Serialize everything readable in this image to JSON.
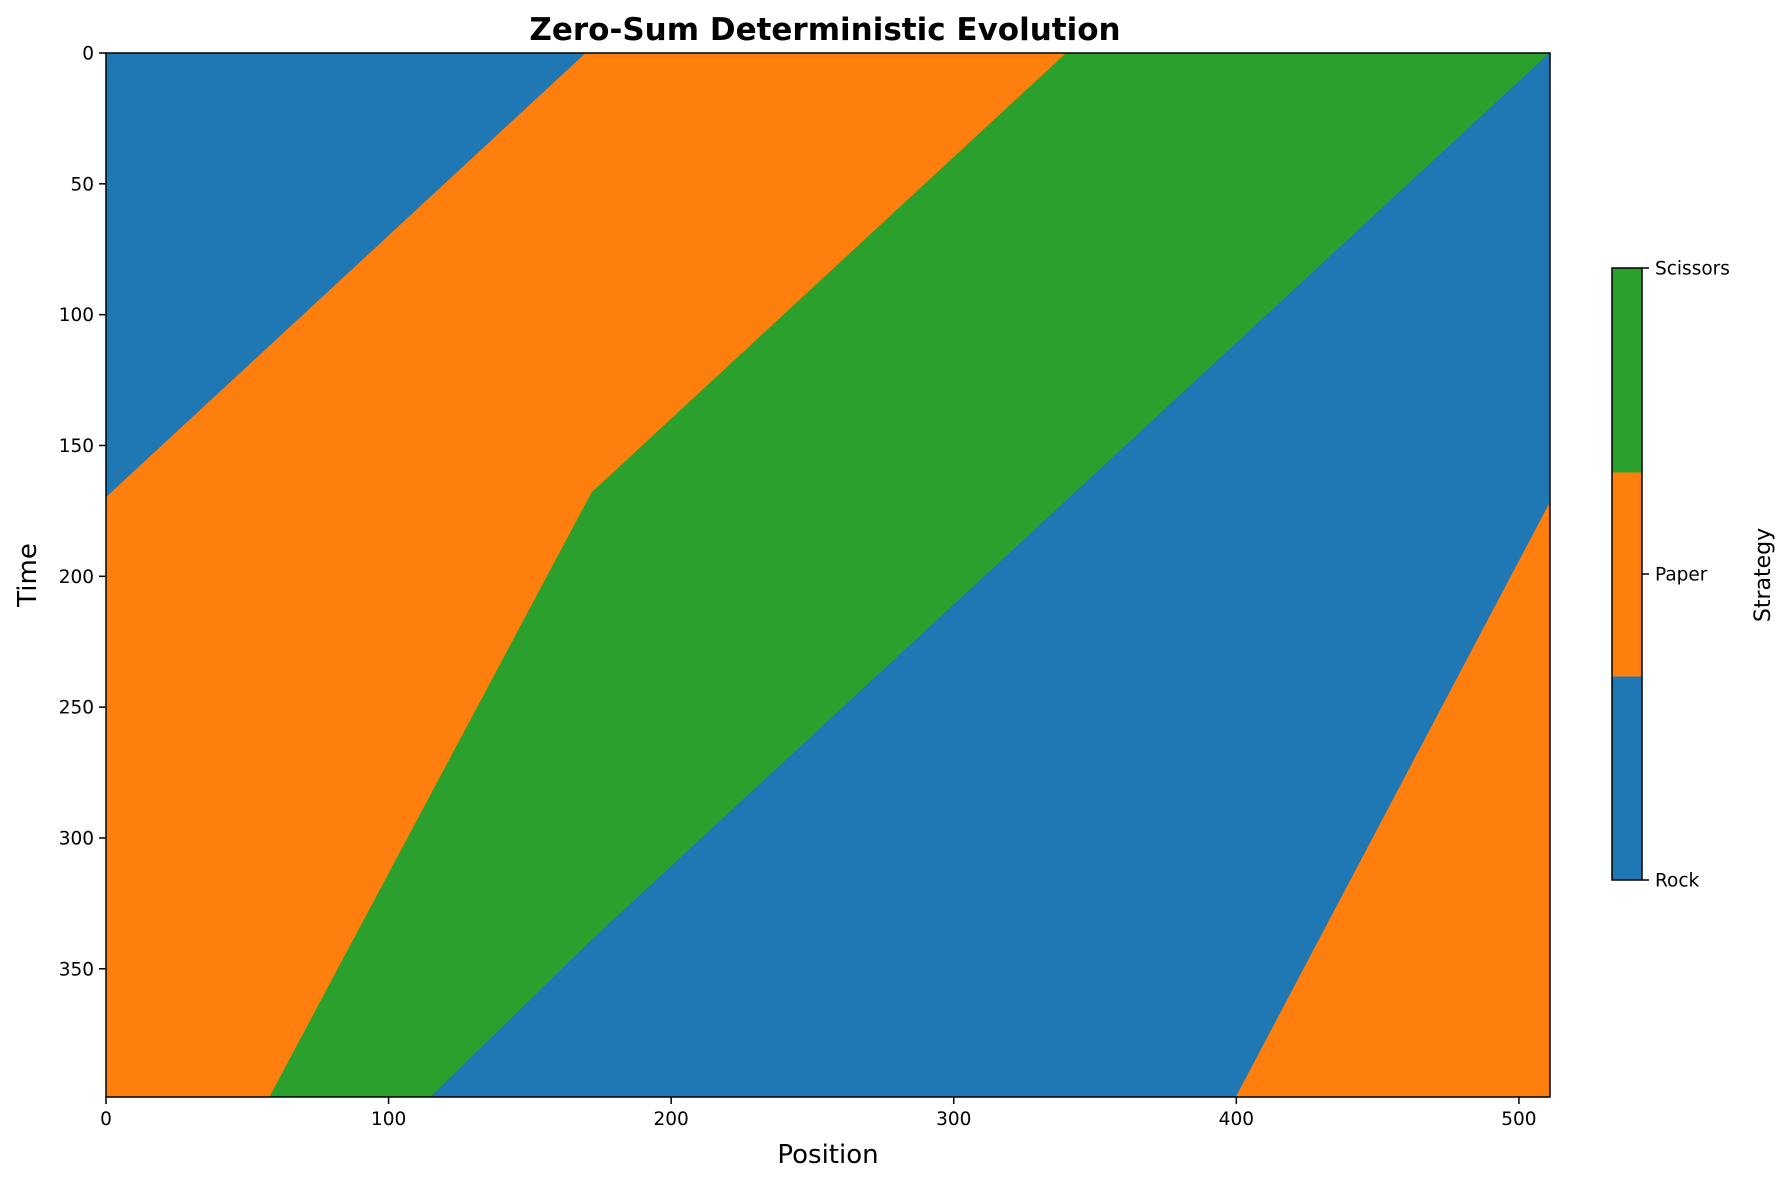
{
  "chart_data": {
    "type": "heatmap",
    "title": "Zero-Sum Deterministic Evolution",
    "xlabel": "Position",
    "ylabel": "Time",
    "xlim": [
      0,
      511
    ],
    "ylim": [
      399,
      0
    ],
    "x_ticks": [
      0,
      100,
      200,
      300,
      400,
      500
    ],
    "y_ticks": [
      0,
      50,
      100,
      150,
      200,
      250,
      300,
      350
    ],
    "grid": false,
    "colorbar": {
      "label": "Strategy",
      "placement": "right",
      "ticks": [
        "Rock",
        "Paper",
        "Scissors"
      ],
      "colors": [
        "#1f77b4",
        "#ff7f0e",
        "#2ca02c"
      ]
    },
    "strategy_colors": {
      "Rock": "#1f77b4",
      "Paper": "#ff7f0e",
      "Scissors": "#2ca02c"
    },
    "regions": [
      {
        "strategy": "Rock",
        "polygon": [
          [
            0,
            0
          ],
          [
            170,
            0
          ],
          [
            0,
            170
          ]
        ]
      },
      {
        "strategy": "Paper",
        "polygon": [
          [
            170,
            0
          ],
          [
            340,
            0
          ],
          [
            172,
            168
          ],
          [
            58,
            399
          ],
          [
            0,
            399
          ],
          [
            0,
            170
          ]
        ]
      },
      {
        "strategy": "Scissors",
        "polygon": [
          [
            340,
            0
          ],
          [
            511,
            0
          ],
          [
            172,
            339
          ],
          [
            115,
            399
          ],
          [
            58,
            399
          ],
          [
            172,
            168
          ]
        ]
      },
      {
        "strategy": "Rock",
        "polygon": [
          [
            511,
            0
          ],
          [
            511,
            172
          ],
          [
            400,
            399
          ],
          [
            115,
            399
          ],
          [
            172,
            339
          ]
        ]
      },
      {
        "strategy": "Paper",
        "polygon": [
          [
            511,
            172
          ],
          [
            511,
            399
          ],
          [
            400,
            399
          ]
        ]
      }
    ]
  }
}
